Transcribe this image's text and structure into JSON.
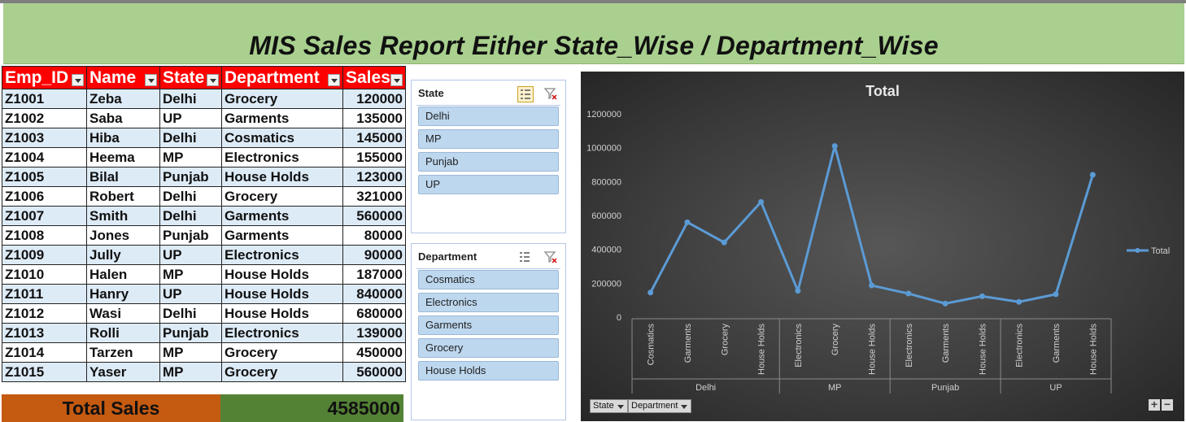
{
  "report": {
    "title": "MIS Sales  Report  Either State_Wise / Department_Wise"
  },
  "table": {
    "headers": [
      "Emp_ID",
      "Name",
      "State",
      "Department",
      "Sales"
    ],
    "rows": [
      [
        "Z1001",
        "Zeba",
        "Delhi",
        "Grocery",
        "120000"
      ],
      [
        "Z1002",
        "Saba",
        "UP",
        "Garments",
        "135000"
      ],
      [
        "Z1003",
        "Hiba",
        "Delhi",
        "Cosmatics",
        "145000"
      ],
      [
        "Z1004",
        "Heema",
        "MP",
        "Electronics",
        "155000"
      ],
      [
        "Z1005",
        "Bilal",
        "Punjab",
        "House Holds",
        "123000"
      ],
      [
        "Z1006",
        "Robert",
        "Delhi",
        "Grocery",
        "321000"
      ],
      [
        "Z1007",
        "Smith",
        "Delhi",
        "Garments",
        "560000"
      ],
      [
        "Z1008",
        "Jones",
        "Punjab",
        "Garments",
        "80000"
      ],
      [
        "Z1009",
        "Jully",
        "UP",
        "Electronics",
        "90000"
      ],
      [
        "Z1010",
        "Halen",
        "MP",
        "House Holds",
        "187000"
      ],
      [
        "Z1011",
        "Hanry",
        "UP",
        "House Holds",
        "840000"
      ],
      [
        "Z1012",
        "Wasi",
        "Delhi",
        "House Holds",
        "680000"
      ],
      [
        "Z1013",
        "Rolli",
        "Punjab",
        "Electronics",
        "139000"
      ],
      [
        "Z1014",
        "Tarzen",
        "MP",
        "Grocery",
        "450000"
      ],
      [
        "Z1015",
        "Yaser",
        "MP",
        "Grocery",
        "560000"
      ]
    ],
    "total_label": "Total Sales",
    "total_value": "4585000"
  },
  "slicers": {
    "state": {
      "title": "State",
      "items": [
        "Delhi",
        "MP",
        "Punjab",
        "UP"
      ]
    },
    "department": {
      "title": "Department",
      "items": [
        "Cosmatics",
        "Electronics",
        "Garments",
        "Grocery",
        "House Holds"
      ]
    }
  },
  "chart_controls": {
    "field_buttons": [
      "State",
      "Department"
    ],
    "zoom_in": "+",
    "zoom_out": "−"
  },
  "colors": {
    "title_band": "#a9d08e",
    "header": "#ff0000",
    "row_band": "#ddebf7",
    "total_label_bg": "#c55a11",
    "total_value_bg": "#548235",
    "slicer_item": "#bdd7ee",
    "chart_bg": "#404040",
    "series_line": "#5b9bd5"
  },
  "chart_data": {
    "type": "line",
    "title": "Total",
    "groups": [
      {
        "name": "Delhi",
        "categories": [
          "Cosmatics",
          "Garments",
          "Grocery",
          "House Holds"
        ]
      },
      {
        "name": "MP",
        "categories": [
          "Electronics",
          "Grocery",
          "House Holds"
        ]
      },
      {
        "name": "Punjab",
        "categories": [
          "Electronics",
          "Garments",
          "House Holds"
        ]
      },
      {
        "name": "UP",
        "categories": [
          "Electronics",
          "Garments",
          "House Holds"
        ]
      }
    ],
    "series": [
      {
        "name": "Total",
        "values": [
          145000,
          560000,
          441000,
          680000,
          155000,
          1010000,
          187000,
          139000,
          80000,
          123000,
          90000,
          135000,
          840000
        ]
      }
    ],
    "ylim": [
      0,
      1200000
    ],
    "yticks": [
      0,
      200000,
      400000,
      600000,
      800000,
      1000000,
      1200000
    ],
    "legend": "right",
    "grid": false
  }
}
